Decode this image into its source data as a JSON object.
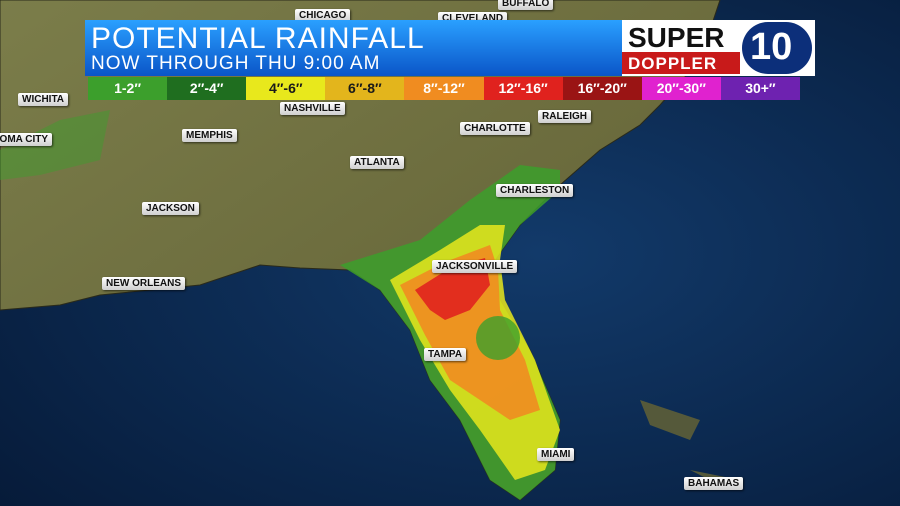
{
  "header": {
    "title": "POTENTIAL RAINFALL",
    "subtitle": "NOW THROUGH THU 9:00 AM"
  },
  "logo": {
    "line1": "SUPER",
    "line2": "DOPPLER",
    "number": "10"
  },
  "legend": [
    {
      "label": "1-2″",
      "color": "#3c9f2c",
      "text_color": "#ffffff"
    },
    {
      "label": "2″-4″",
      "color": "#1f6e1f",
      "text_color": "#ffffff"
    },
    {
      "label": "4″-6″",
      "color": "#e8e81c",
      "text_color": "#1a1a1a"
    },
    {
      "label": "6″-8″",
      "color": "#e3b51c",
      "text_color": "#1a1a1a"
    },
    {
      "label": "8″-12″",
      "color": "#f08c20",
      "text_color": "#ffffff"
    },
    {
      "label": "12″-16″",
      "color": "#e0221e",
      "text_color": "#ffffff"
    },
    {
      "label": "16″-20″",
      "color": "#9a1414",
      "text_color": "#ffffff"
    },
    {
      "label": "20″-30″",
      "color": "#e022cf",
      "text_color": "#ffffff"
    },
    {
      "label": "30+″",
      "color": "#6e22b0",
      "text_color": "#ffffff"
    }
  ],
  "cities": [
    "CHICAGO",
    "CLEVELAND",
    "BUFFALO",
    "WICHITA",
    "OKLAHOMA CITY",
    "NASHVILLE",
    "MEMPHIS",
    "RALEIGH",
    "CHARLOTTE",
    "ATLANTA",
    "CHARLESTON",
    "JACKSON",
    "NEW ORLEANS",
    "JACKSONVILLE",
    "TAMPA",
    "MIAMI",
    "BAHAMAS"
  ]
}
